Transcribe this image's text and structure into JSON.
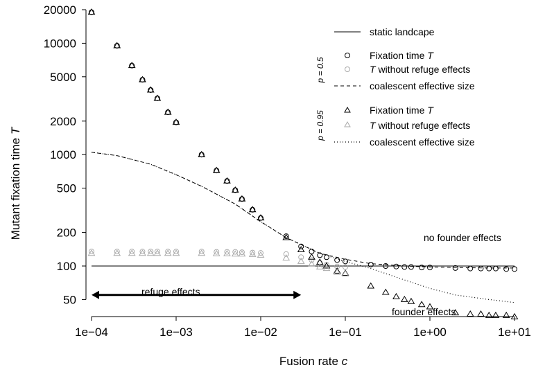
{
  "chart_data": {
    "type": "scatter",
    "xlabel": "Fusion rate",
    "xlabel_var": "c",
    "ylabel": "Mutant fixation time",
    "ylabel_var": "T",
    "x_scale": "log",
    "y_scale": "log",
    "xlim": [
      0.0001,
      10
    ],
    "ylim": [
      40,
      20000
    ],
    "x_ticks": [
      0.0001,
      0.001,
      0.01,
      0.1,
      1,
      10
    ],
    "x_tick_labels": [
      "1e−04",
      "1e−03",
      "1e−02",
      "1e−01",
      "1e+00",
      "1e+01"
    ],
    "y_ticks": [
      50,
      100,
      200,
      500,
      1000,
      2000,
      5000,
      10000,
      20000
    ],
    "y_tick_labels": [
      "50",
      "100",
      "200",
      "500",
      "1000",
      "2000",
      "5000",
      "10000",
      "20000"
    ],
    "grid": false,
    "legend_position": "top-right",
    "legend": {
      "static_label": "static landcape",
      "groups": [
        {
          "group_label": "p = 0.5",
          "items": [
            {
              "marker": "circle",
              "color": "#000000",
              "text": "Fixation time ",
              "var": "T"
            },
            {
              "marker": "circle",
              "color": "#aaaaaa",
              "text": " without refuge effects",
              "var_prefix": "T"
            },
            {
              "line": "dashed",
              "text": "coalescent effective size"
            }
          ]
        },
        {
          "group_label": "p = 0.95",
          "items": [
            {
              "marker": "triangle",
              "color": "#000000",
              "text": "Fixation time ",
              "var": "T"
            },
            {
              "marker": "triangle",
              "color": "#aaaaaa",
              "text": " without refuge effects",
              "var_prefix": "T"
            },
            {
              "line": "dotted",
              "text": "coalescent effective size"
            }
          ]
        }
      ]
    },
    "annotations": {
      "refuge": "refuge effects",
      "no_founder": "no founder effects",
      "founder": "founder effects",
      "refuge_arrow_x": [
        0.0001,
        0.03
      ],
      "refuge_arrow_y": 55
    },
    "series": [
      {
        "kind": "line",
        "style": "solid",
        "x": [
          0.0001,
          10
        ],
        "y": [
          100,
          100
        ]
      },
      {
        "kind": "line",
        "style": "dashed",
        "x": [
          0.0001,
          0.0002,
          0.0005,
          0.001,
          0.002,
          0.005,
          0.01,
          0.02,
          0.05,
          0.1,
          0.2,
          0.5,
          1,
          2,
          5,
          10
        ],
        "y": [
          1050,
          980,
          820,
          660,
          520,
          360,
          250,
          180,
          130,
          115,
          105,
          100,
          98,
          97,
          96,
          96
        ]
      },
      {
        "kind": "line",
        "style": "dotted",
        "x": [
          0.0001,
          0.0002,
          0.0005,
          0.001,
          0.002,
          0.005,
          0.01,
          0.02,
          0.05,
          0.1,
          0.2,
          0.5,
          1,
          2,
          5,
          10
        ],
        "y": [
          1050,
          980,
          820,
          660,
          520,
          360,
          250,
          180,
          130,
          110,
          95,
          75,
          63,
          55,
          50,
          47
        ]
      },
      {
        "kind": "points",
        "marker": "circle",
        "color": "#000000",
        "x": [
          0.0001,
          0.0002,
          0.0003,
          0.0004,
          0.0005,
          0.0006,
          0.0008,
          0.001,
          0.002,
          0.003,
          0.004,
          0.005,
          0.006,
          0.008,
          0.01,
          0.02,
          0.03,
          0.04,
          0.05,
          0.06,
          0.08,
          0.1,
          0.2,
          0.3,
          0.4,
          0.5,
          0.6,
          0.8,
          1,
          2,
          3,
          4,
          5,
          6,
          8,
          10
        ],
        "y": [
          19000,
          9500,
          6300,
          4700,
          3800,
          3200,
          2400,
          1950,
          1000,
          720,
          580,
          480,
          400,
          320,
          270,
          185,
          150,
          135,
          125,
          120,
          113,
          110,
          103,
          100,
          99,
          98,
          98,
          97,
          97,
          96,
          95,
          95,
          95,
          95,
          94,
          94
        ]
      },
      {
        "kind": "points",
        "marker": "circle",
        "color": "#aaaaaa",
        "x": [
          0.0001,
          0.0002,
          0.0003,
          0.0004,
          0.0005,
          0.0006,
          0.0008,
          0.001,
          0.002,
          0.003,
          0.004,
          0.005,
          0.006,
          0.008,
          0.01,
          0.02,
          0.03,
          0.04,
          0.05,
          0.06,
          0.08,
          0.1
        ],
        "y": [
          135,
          135,
          135,
          135,
          135,
          135,
          135,
          135,
          135,
          134,
          134,
          134,
          133,
          132,
          131,
          128,
          120,
          113,
          107,
          103,
          99,
          98
        ]
      },
      {
        "kind": "points",
        "marker": "triangle",
        "color": "#000000",
        "x": [
          0.0001,
          0.0002,
          0.0003,
          0.0004,
          0.0005,
          0.0006,
          0.0008,
          0.001,
          0.002,
          0.003,
          0.004,
          0.005,
          0.006,
          0.008,
          0.01,
          0.02,
          0.03,
          0.04,
          0.05,
          0.06,
          0.08,
          0.1,
          0.2,
          0.3,
          0.4,
          0.5,
          0.6,
          0.8,
          1,
          2,
          3,
          4,
          5,
          6,
          8,
          10
        ],
        "y": [
          19000,
          9500,
          6300,
          4700,
          3800,
          3200,
          2400,
          1950,
          1000,
          720,
          580,
          480,
          400,
          320,
          270,
          180,
          140,
          120,
          108,
          100,
          90,
          86,
          66,
          58,
          53,
          50,
          48,
          45,
          43,
          38,
          37,
          37,
          36,
          36,
          36,
          35
        ]
      },
      {
        "kind": "points",
        "marker": "triangle",
        "color": "#aaaaaa",
        "x": [
          0.0001,
          0.0002,
          0.0003,
          0.0004,
          0.0005,
          0.0006,
          0.0008,
          0.001,
          0.002,
          0.003,
          0.004,
          0.005,
          0.006,
          0.008,
          0.01,
          0.02,
          0.03,
          0.04,
          0.05,
          0.06,
          0.08,
          0.1
        ],
        "y": [
          130,
          130,
          130,
          130,
          130,
          130,
          130,
          130,
          130,
          129,
          129,
          128,
          128,
          127,
          125,
          118,
          110,
          104,
          98,
          95,
          88,
          85
        ]
      }
    ]
  }
}
